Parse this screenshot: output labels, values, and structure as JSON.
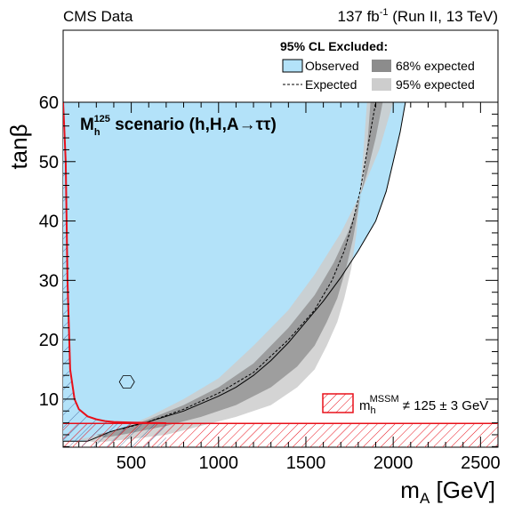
{
  "header": {
    "experiment": "CMS Data",
    "lumi": "137 fb",
    "lumi_exp": "-1",
    "run": " (Run II, 13 TeV)"
  },
  "legend": {
    "title": "95% CL Excluded:",
    "observed": "Observed",
    "expected": "Expected",
    "band68": "68% expected",
    "band95": "95% expected"
  },
  "scenario": {
    "prefix": "M",
    "sub": "h",
    "sup": "125",
    "rest": " scenario (h,H,A",
    "arrow": "→",
    "tautau": "ττ",
    "close": ")"
  },
  "mssm_label": {
    "m": "m",
    "sub": "h",
    "sup": "MSSM",
    "rest": " ≠ 125 ± 3 GeV"
  },
  "colors": {
    "observed": "#b3e2f9",
    "band68": "#8c8c8c",
    "band95": "#cdcdcd",
    "mssm": "#e8101a"
  },
  "chart_data": {
    "type": "area",
    "xlabel_main": "m",
    "xlabel_sub": "A",
    "xlabel_unit": " [GeV]",
    "ylabel": "tanβ",
    "xlim": [
      110,
      2600
    ],
    "ylim": [
      1.9,
      60
    ],
    "x_ticks": [
      500,
      1000,
      1500,
      2000,
      2500
    ],
    "y_ticks": [
      10,
      20,
      30,
      40,
      50,
      60
    ],
    "observed": [
      [
        110,
        2.9
      ],
      [
        250,
        2.9
      ],
      [
        380,
        4.5
      ],
      [
        500,
        5.5
      ],
      [
        600,
        6.2
      ],
      [
        800,
        8
      ],
      [
        1000,
        10.5
      ],
      [
        1100,
        12
      ],
      [
        1200,
        14
      ],
      [
        1300,
        16.5
      ],
      [
        1400,
        19.5
      ],
      [
        1500,
        23
      ],
      [
        1600,
        26.5
      ],
      [
        1700,
        30.5
      ],
      [
        1800,
        35
      ],
      [
        1900,
        40
      ],
      [
        1960,
        45
      ],
      [
        2000,
        50
      ],
      [
        2040,
        55
      ],
      [
        2070,
        60
      ]
    ],
    "expected": [
      [
        450,
        5
      ],
      [
        600,
        6.2
      ],
      [
        800,
        8.3
      ],
      [
        1000,
        11
      ],
      [
        1200,
        14.5
      ],
      [
        1400,
        20
      ],
      [
        1550,
        25
      ],
      [
        1650,
        30
      ],
      [
        1720,
        35
      ],
      [
        1770,
        40
      ],
      [
        1810,
        45
      ],
      [
        1840,
        50
      ],
      [
        1870,
        55
      ],
      [
        1900,
        60
      ]
    ],
    "band68_upper": [
      [
        300,
        4
      ],
      [
        450,
        5
      ],
      [
        600,
        6.6
      ],
      [
        800,
        9
      ],
      [
        1000,
        12
      ],
      [
        1200,
        16
      ],
      [
        1400,
        22
      ],
      [
        1550,
        27.5
      ],
      [
        1660,
        33
      ],
      [
        1740,
        38
      ],
      [
        1800,
        43
      ],
      [
        1850,
        48
      ],
      [
        1900,
        54
      ],
      [
        1940,
        60
      ]
    ],
    "band68_lower": [
      [
        350,
        3.5
      ],
      [
        500,
        4.3
      ],
      [
        700,
        5.5
      ],
      [
        900,
        7
      ],
      [
        1100,
        9
      ],
      [
        1300,
        12
      ],
      [
        1450,
        15.5
      ],
      [
        1550,
        19
      ],
      [
        1620,
        23
      ],
      [
        1680,
        27
      ],
      [
        1730,
        32
      ],
      [
        1770,
        37
      ],
      [
        1800,
        42
      ],
      [
        1830,
        47
      ],
      [
        1850,
        52
      ],
      [
        1870,
        60
      ]
    ],
    "band95_upper": [
      [
        200,
        3.2
      ],
      [
        400,
        4.5
      ],
      [
        600,
        7
      ],
      [
        800,
        10
      ],
      [
        1000,
        13.5
      ],
      [
        1200,
        19
      ],
      [
        1400,
        25
      ],
      [
        1550,
        31
      ],
      [
        1700,
        38
      ],
      [
        1820,
        45
      ],
      [
        1920,
        52
      ],
      [
        2000,
        60
      ]
    ],
    "band95_lower": [
      [
        300,
        2.7
      ],
      [
        500,
        3.3
      ],
      [
        700,
        4
      ],
      [
        900,
        5.5
      ],
      [
        1100,
        7
      ],
      [
        1300,
        9
      ],
      [
        1450,
        12
      ],
      [
        1550,
        15
      ],
      [
        1620,
        19
      ],
      [
        1680,
        23
      ],
      [
        1720,
        27
      ],
      [
        1760,
        32
      ],
      [
        1790,
        38
      ],
      [
        1810,
        45
      ],
      [
        1830,
        52
      ],
      [
        1850,
        60
      ]
    ],
    "mssm_excluded_tanb_max": 5.9,
    "mssm_left_boundary": [
      [
        110,
        60
      ],
      [
        125,
        50
      ],
      [
        135,
        30
      ],
      [
        150,
        15
      ],
      [
        175,
        10
      ],
      [
        200,
        8.3
      ],
      [
        250,
        7.1
      ],
      [
        300,
        6.6
      ],
      [
        350,
        6.3
      ],
      [
        400,
        6.15
      ],
      [
        500,
        6.05
      ],
      [
        600,
        6.0
      ],
      [
        700,
        5.95
      ]
    ],
    "excluded_island": {
      "x": 475,
      "y": 12.9
    }
  }
}
